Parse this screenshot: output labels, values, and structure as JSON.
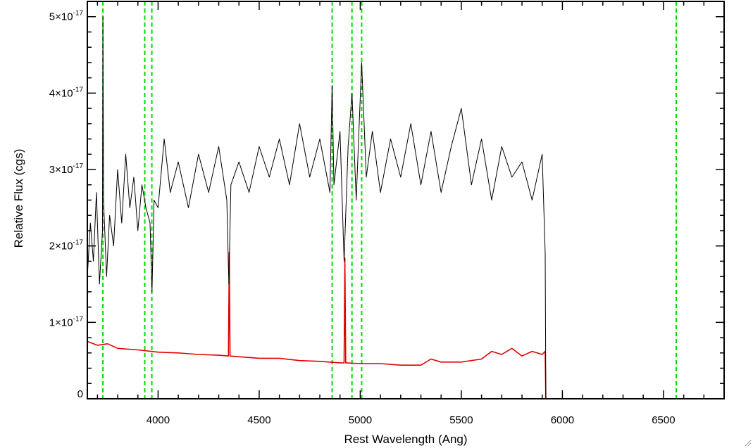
{
  "chart_data": {
    "type": "line",
    "title": "",
    "xlabel": "Rest Wavelength (Ang)",
    "ylabel": "Relative Flux (cgs)",
    "xlim": [
      3650,
      6800
    ],
    "ylim": [
      0,
      5.2e-17
    ],
    "x_ticks": [
      4000,
      4500,
      5000,
      5500,
      6000,
      6500
    ],
    "x_tick_labels": [
      "4000",
      "4500",
      "5000",
      "5500",
      "6000",
      "6500"
    ],
    "y_ticks": [
      0,
      1e-17,
      2e-17,
      3e-17,
      4e-17,
      5e-17
    ],
    "y_tick_labels": [
      {
        "mantissa": "0",
        "exponent": ""
      },
      {
        "mantissa": "1×10",
        "exponent": "-17"
      },
      {
        "mantissa": "2×10",
        "exponent": "-17"
      },
      {
        "mantissa": "3×10",
        "exponent": "-17"
      },
      {
        "mantissa": "4×10",
        "exponent": "-17"
      },
      {
        "mantissa": "5×10",
        "exponent": "-17"
      }
    ],
    "grid": false,
    "legend": "none",
    "colors": {
      "spectrum": "#000000",
      "error": "#e00000",
      "lines": "#00dd00"
    },
    "vertical_lines": [
      3727,
      3934,
      3969,
      4861,
      4959,
      5007,
      6563
    ],
    "series": [
      {
        "role": "spectrum",
        "x": [
          3650,
          3665,
          3680,
          3695,
          3710,
          3725,
          3727,
          3730,
          3745,
          3760,
          3780,
          3800,
          3820,
          3840,
          3860,
          3880,
          3900,
          3920,
          3940,
          3960,
          3970,
          3980,
          4000,
          4030,
          4060,
          4100,
          4150,
          4200,
          4250,
          4300,
          4340,
          4350,
          4360,
          4400,
          4450,
          4500,
          4550,
          4600,
          4650,
          4700,
          4750,
          4800,
          4850,
          4861,
          4870,
          4900,
          4920,
          4940,
          4959,
          4980,
          5007,
          5030,
          5060,
          5100,
          5150,
          5200,
          5250,
          5300,
          5350,
          5400,
          5450,
          5500,
          5550,
          5600,
          5650,
          5700,
          5750,
          5800,
          5850,
          5900,
          5915,
          5918,
          5920,
          6100,
          6300,
          6500,
          6700,
          6800
        ],
        "values": [
          1.6e-17,
          2.3e-17,
          1.8e-17,
          2.7e-17,
          1.5e-17,
          2.2e-17,
          5e-17,
          2.6e-17,
          1.6e-17,
          2.4e-17,
          2e-17,
          3e-17,
          2.3e-17,
          3.2e-17,
          2.5e-17,
          2.9e-17,
          2.2e-17,
          2.8e-17,
          2.5e-17,
          2.3e-17,
          1.4e-17,
          2.6e-17,
          2.5e-17,
          3.4e-17,
          2.7e-17,
          3.1e-17,
          2.5e-17,
          3.2e-17,
          2.7e-17,
          3.3e-17,
          2.6e-17,
          1.5e-17,
          2.8e-17,
          3.1e-17,
          2.7e-17,
          3.3e-17,
          2.9e-17,
          3.4e-17,
          2.8e-17,
          3.6e-17,
          2.9e-17,
          3.4e-17,
          2.7e-17,
          4.1e-17,
          2.8e-17,
          3.5e-17,
          1.8e-17,
          3.3e-17,
          4e-17,
          2.6e-17,
          4.4e-17,
          2.9e-17,
          3.5e-17,
          2.7e-17,
          3.4e-17,
          2.9e-17,
          3.6e-17,
          2.8e-17,
          3.5e-17,
          2.7e-17,
          3.3e-17,
          3.8e-17,
          2.8e-17,
          3.4e-17,
          2.6e-17,
          3.3e-17,
          2.9e-17,
          3.1e-17,
          2.6e-17,
          3.2e-17,
          1.9e-17,
          0,
          0,
          0,
          0,
          0,
          0,
          0
        ]
      },
      {
        "role": "error",
        "x": [
          3650,
          3700,
          3750,
          3800,
          3900,
          4000,
          4100,
          4200,
          4300,
          4348,
          4352,
          4356,
          4400,
          4500,
          4600,
          4700,
          4800,
          4900,
          4920,
          4924,
          4928,
          5000,
          5100,
          5200,
          5300,
          5350,
          5400,
          5500,
          5600,
          5650,
          5700,
          5750,
          5800,
          5850,
          5900,
          5915,
          5918,
          6000,
          6300,
          6600,
          6800
        ],
        "values": [
          7.5e-18,
          7e-18,
          7.2e-18,
          6.6e-18,
          6.4e-18,
          6.1e-18,
          6e-18,
          5.8e-18,
          5.7e-18,
          5.6e-18,
          1.92e-17,
          5.6e-18,
          5.5e-18,
          5.3e-18,
          5.3e-18,
          5e-18,
          4.9e-18,
          4.7e-18,
          4.7e-18,
          1.84e-17,
          4.7e-18,
          4.6e-18,
          4.6e-18,
          4.4e-18,
          4.4e-18,
          5.2e-18,
          4.8e-18,
          4.8e-18,
          5.2e-18,
          6.2e-18,
          5.8e-18,
          6.6e-18,
          5.6e-18,
          6.2e-18,
          5.8e-18,
          6.2e-18,
          0,
          0,
          0,
          0,
          0
        ]
      }
    ]
  }
}
